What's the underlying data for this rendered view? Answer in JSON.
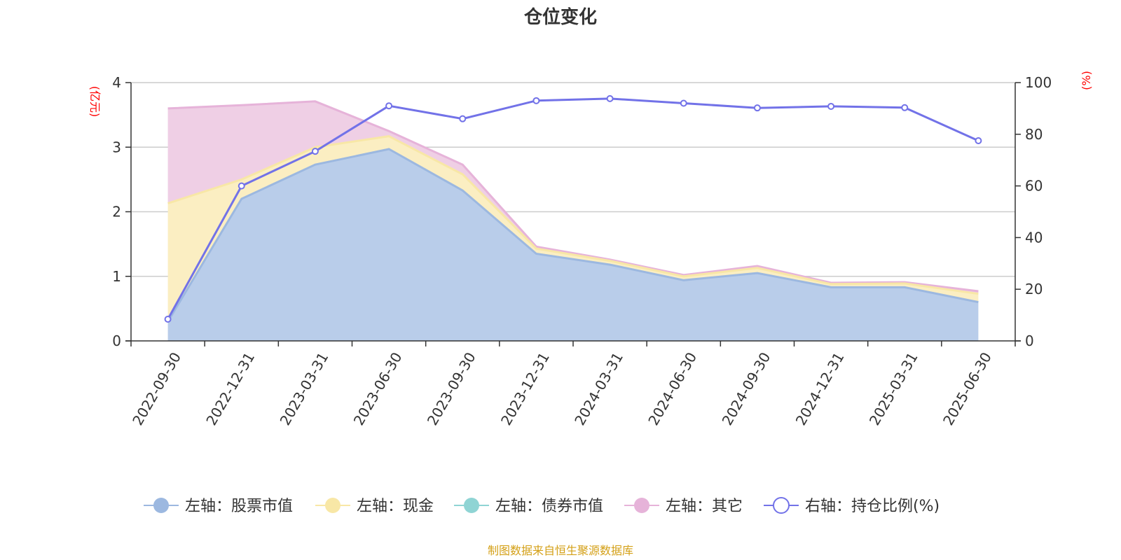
{
  "chart_data": {
    "type": "area",
    "title": "仓位变化",
    "left_unit": "(亿元)",
    "right_unit": "(%)",
    "categories": [
      "2022-09-30",
      "2022-12-31",
      "2023-03-31",
      "2023-06-30",
      "2023-09-30",
      "2023-12-31",
      "2024-03-31",
      "2024-06-30",
      "2024-09-30",
      "2024-12-31",
      "2025-03-31",
      "2025-06-30"
    ],
    "left_ylim": [
      0,
      4
    ],
    "left_ticks": [
      0,
      1,
      2,
      3,
      4
    ],
    "right_ylim": [
      0,
      100
    ],
    "right_ticks": [
      0,
      20,
      40,
      60,
      80,
      100
    ],
    "grid": true,
    "stacked": true,
    "series": [
      {
        "name": "左轴：股票市值",
        "axis": "left",
        "color": "#9cb8e0",
        "fill": "#b9cdea",
        "values": [
          0.3,
          2.2,
          2.73,
          2.97,
          2.33,
          1.35,
          1.18,
          0.94,
          1.05,
          0.83,
          0.83,
          0.6
        ]
      },
      {
        "name": "左轴：现金",
        "axis": "left",
        "color": "#f8e7a6",
        "fill": "#fbeec2",
        "values": [
          1.83,
          0.3,
          0.27,
          0.2,
          0.25,
          0.08,
          0.06,
          0.06,
          0.08,
          0.05,
          0.06,
          0.13
        ]
      },
      {
        "name": "左轴：债券市值",
        "axis": "left",
        "color": "#8fd4d4",
        "fill": "#bfe6e6",
        "values": [
          0,
          0,
          0,
          0,
          0,
          0,
          0,
          0,
          0,
          0,
          0,
          0
        ]
      },
      {
        "name": "左轴：其它",
        "axis": "left",
        "color": "#e6b3d9",
        "fill": "#efcfe5",
        "values": [
          1.47,
          1.15,
          0.71,
          0.08,
          0.15,
          0.03,
          0.02,
          0.02,
          0.03,
          0.02,
          0.02,
          0.04
        ]
      },
      {
        "name": "右轴：持仓比例(%)",
        "axis": "right",
        "type": "line",
        "color": "#7272e8",
        "values": [
          8.4,
          60,
          73.4,
          91,
          86,
          93,
          93.8,
          92,
          90.2,
          90.8,
          90.3,
          77.5
        ]
      }
    ],
    "legend_position": "bottom",
    "source": "制图数据来自恒生聚源数据库"
  }
}
